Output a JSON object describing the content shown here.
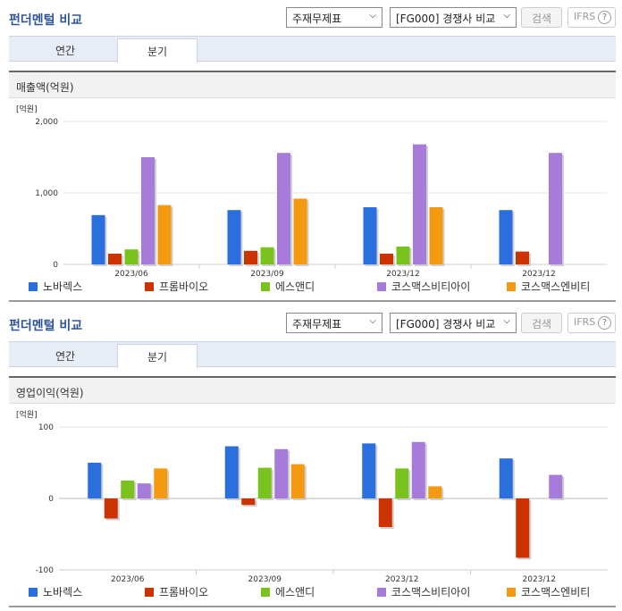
{
  "common": {
    "title": "펀더멘털 비교",
    "select_type": "주재무제표",
    "select_compare": "[FG000] 경쟁사 비교",
    "search_label": "검색",
    "ifrs_label": "IFRS",
    "help_glyph": "?",
    "tabs": [
      "연간",
      "분기"
    ],
    "active_tab": 1,
    "legend": [
      {
        "name": "노바렉스",
        "color": "#2a6fdb"
      },
      {
        "name": "프롬바이오",
        "color": "#cc3300"
      },
      {
        "name": "에스앤디",
        "color": "#7ac31e"
      },
      {
        "name": "코스맥스비티아이",
        "color": "#a77bda"
      },
      {
        "name": "코스맥스엔비티",
        "color": "#f49a12"
      }
    ]
  },
  "chart_data": [
    {
      "type": "bar",
      "title": "매출액(억원)",
      "unit_label": "[억원]",
      "categories": [
        "2023/06",
        "2023/09",
        "2023/12",
        "2023/12"
      ],
      "yticks": [
        "2,000",
        "1,000",
        "0"
      ],
      "ylim": [
        0,
        2000
      ],
      "grid": true,
      "series": [
        {
          "name": "노바렉스",
          "values": [
            690,
            760,
            800,
            760
          ]
        },
        {
          "name": "프롬바이오",
          "values": [
            150,
            190,
            150,
            180
          ]
        },
        {
          "name": "에스앤디",
          "values": [
            210,
            240,
            250,
            null
          ]
        },
        {
          "name": "코스맥스비티아이",
          "values": [
            1500,
            1560,
            1680,
            1560
          ]
        },
        {
          "name": "코스맥스엔비티",
          "values": [
            830,
            920,
            800,
            null
          ]
        }
      ]
    },
    {
      "type": "bar",
      "title": "영업이익(억원)",
      "unit_label": "[억원]",
      "categories": [
        "2023/06",
        "2023/09",
        "2023/12",
        "2023/12"
      ],
      "yticks": [
        "100",
        "0",
        "-100"
      ],
      "ylim": [
        -100,
        100
      ],
      "grid": true,
      "series": [
        {
          "name": "노바렉스",
          "values": [
            50,
            73,
            77,
            56
          ]
        },
        {
          "name": "프롬바이오",
          "values": [
            -28,
            -9,
            -40,
            -83
          ]
        },
        {
          "name": "에스앤디",
          "values": [
            25,
            43,
            42,
            null
          ]
        },
        {
          "name": "코스맥스비티아이",
          "values": [
            21,
            69,
            79,
            33
          ]
        },
        {
          "name": "코스맥스엔비티",
          "values": [
            42,
            48,
            17,
            null
          ]
        }
      ]
    }
  ]
}
